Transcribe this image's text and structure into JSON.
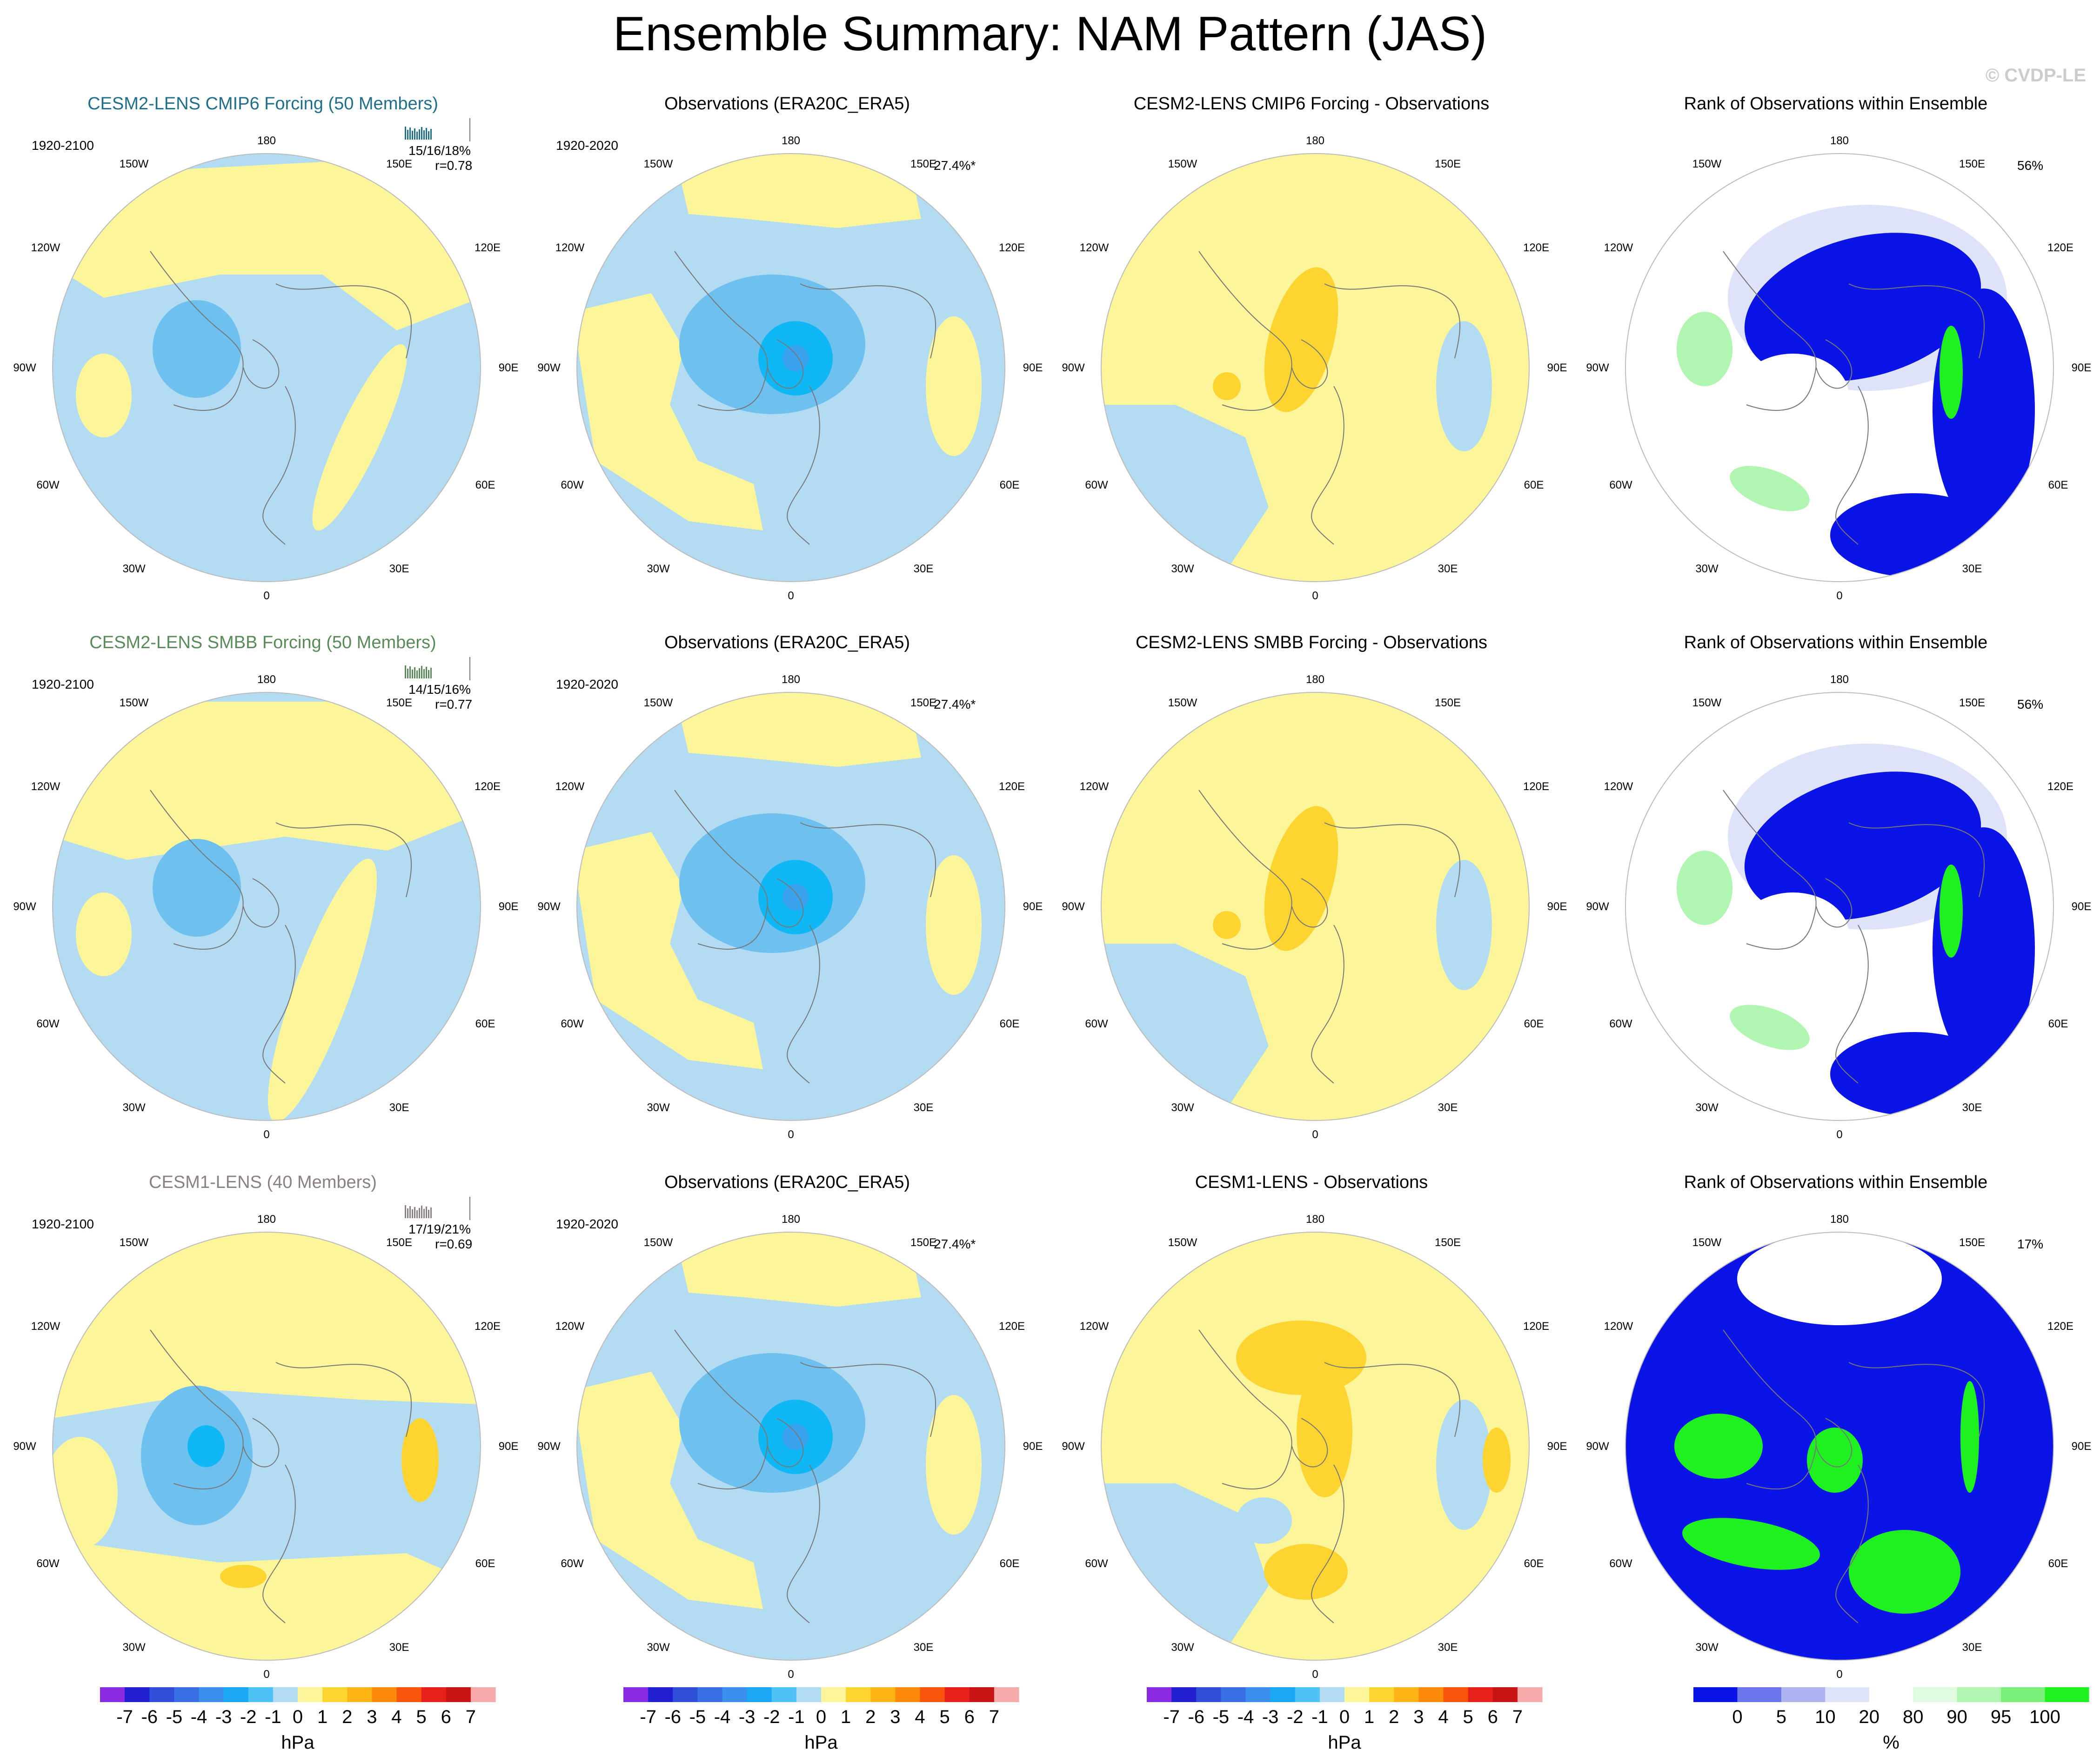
{
  "title": "Ensemble Summary: NAM Pattern (JAS)",
  "watermark": "© CVDP-LE",
  "map_labels": {
    "top": "180",
    "bottom": "0",
    "l1": "150W",
    "l2": "120W",
    "l3": "90W",
    "l4": "60W",
    "l5": "30W",
    "r1": "150E",
    "r2": "120E",
    "r3": "90E",
    "r4": "60E",
    "r5": "30E"
  },
  "colors": {
    "land_yellow": "#fdf59a",
    "blue1": "#b3dcf3",
    "blue2": "#6ec0ef",
    "blue3": "#3ba3ee",
    "blue4": "#0fb8f5",
    "orange1": "#fed530",
    "rank_blue": "#0a14e6",
    "rank_green": "#1ff01f"
  },
  "rows": [
    {
      "model_title": "CESM2-LENS CMIP6 Forcing (50 Members)",
      "model_title_color": "#1f6f8b",
      "model_period": "1920-2100",
      "model_stats": "15/16/18%",
      "model_r": "r=0.78",
      "obs_title": "Observations (ERA20C_ERA5)",
      "obs_period": "1920-2020",
      "obs_pct": "27.4%*",
      "diff_title": "CESM2-LENS CMIP6 Forcing - Observations",
      "rank_title": "Rank of Observations within Ensemble",
      "rank_pct": "56%"
    },
    {
      "model_title": "CESM2-LENS SMBB Forcing (50 Members)",
      "model_title_color": "#5a8a5a",
      "model_period": "1920-2100",
      "model_stats": "14/15/16%",
      "model_r": "r=0.77",
      "obs_title": "Observations (ERA20C_ERA5)",
      "obs_period": "1920-2020",
      "obs_pct": "27.4%*",
      "diff_title": "CESM2-LENS SMBB Forcing - Observations",
      "rank_title": "Rank of Observations within Ensemble",
      "rank_pct": "56%"
    },
    {
      "model_title": "CESM1-LENS (40 Members)",
      "model_title_color": "#8a8080",
      "model_period": "1920-2100",
      "model_stats": "17/19/21%",
      "model_r": "r=0.69",
      "obs_title": "Observations (ERA20C_ERA5)",
      "obs_period": "1920-2020",
      "obs_pct": "27.4%*",
      "diff_title": "CESM1-LENS - Observations",
      "rank_title": "Rank of Observations within Ensemble",
      "rank_pct": "17%"
    }
  ],
  "colorbar_hpa": {
    "unit": "hPa",
    "ticks": [
      "-7",
      "-6",
      "-5",
      "-4",
      "-3",
      "-2",
      "-1",
      "0",
      "1",
      "2",
      "3",
      "4",
      "5",
      "6",
      "7"
    ],
    "colors": [
      "#8a2be2",
      "#2020d0",
      "#2f4fd8",
      "#3a6fe4",
      "#3b8fee",
      "#1aa8f5",
      "#4fc2f5",
      "#b3dcf3",
      "#fdf59a",
      "#fed530",
      "#fdb516",
      "#fd8a0a",
      "#f8550a",
      "#e6201a",
      "#c81414",
      "#f7aaaa"
    ]
  },
  "colorbar_rank": {
    "unit": "%",
    "ticks": [
      "0",
      "5",
      "10",
      "20",
      "80",
      "90",
      "95",
      "100"
    ],
    "colors": [
      "#0a14e6",
      "#6b76ec",
      "#aeb4f2",
      "#dfe3f9",
      "#ffffff",
      "#e0fbe0",
      "#b0f5b0",
      "#7af07a",
      "#1ff01f"
    ]
  }
}
